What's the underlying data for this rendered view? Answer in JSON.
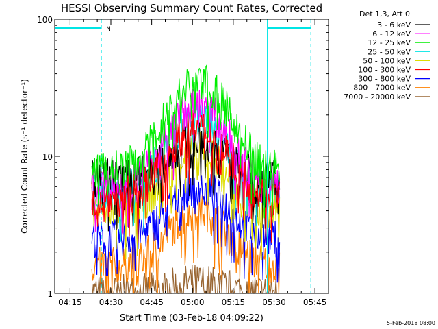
{
  "chart_data": {
    "type": "line",
    "title": "HESSI Observing Summary Count Rates, Corrected",
    "xlabel": "Start Time (03-Feb-18 04:09:22)",
    "ylabel": "Corrected Count Rate (s⁻¹ detector⁻¹)",
    "yscale": "log",
    "ylim": [
      1,
      100
    ],
    "xlim_minutes_after_0400": [
      9.37,
      110
    ],
    "x_tick_labels": [
      "04:15",
      "04:30",
      "04:45",
      "05:00",
      "05:15",
      "05:30",
      "05:45"
    ],
    "x_tick_minutes_after_0400": [
      15,
      30,
      45,
      60,
      75,
      90,
      105
    ],
    "y_tick_labels": [
      "1",
      "10",
      "100"
    ],
    "y_tick_values": [
      1,
      10,
      100
    ],
    "legend_header": "Det 1,3, Att 0",
    "legend_placement": "right",
    "data_start_minute": 23,
    "data_end_minute": 92,
    "series": [
      {
        "name": "3 - 6 keV",
        "color": "#000000",
        "peak": 13,
        "base": 7
      },
      {
        "name": "6 - 12 keV",
        "color": "#ff00ff",
        "peak": 23,
        "base": 6
      },
      {
        "name": "12 - 25 keV",
        "color": "#00ee00",
        "peak": 35,
        "base": 8
      },
      {
        "name": "25 - 50 keV",
        "color": "#00e5e5",
        "peak": 19,
        "base": 5.5
      },
      {
        "name": "50 - 100 keV",
        "color": "#dddd00",
        "peak": 11,
        "base": 4
      },
      {
        "name": "100 - 300 keV",
        "color": "#ff0000",
        "peak": 16,
        "base": 5
      },
      {
        "name": "300 - 800 keV",
        "color": "#0000ff",
        "peak": 6,
        "base": 2.5
      },
      {
        "name": "800 - 7000 keV",
        "color": "#ff8000",
        "peak": 4,
        "base": 1.6
      },
      {
        "name": "7000 - 20000 keV",
        "color": "#996633",
        "peak": 1.2,
        "base": 1.0
      }
    ],
    "annotations": {
      "night_marker_label": "N",
      "night_intervals_minutes": [
        [
          9.37,
          26.5
        ],
        [
          87.5,
          103.5
        ]
      ],
      "marker_color": "#00e5e5"
    }
  },
  "footer": {
    "date_stamp": "5-Feb-2018 08:00"
  }
}
